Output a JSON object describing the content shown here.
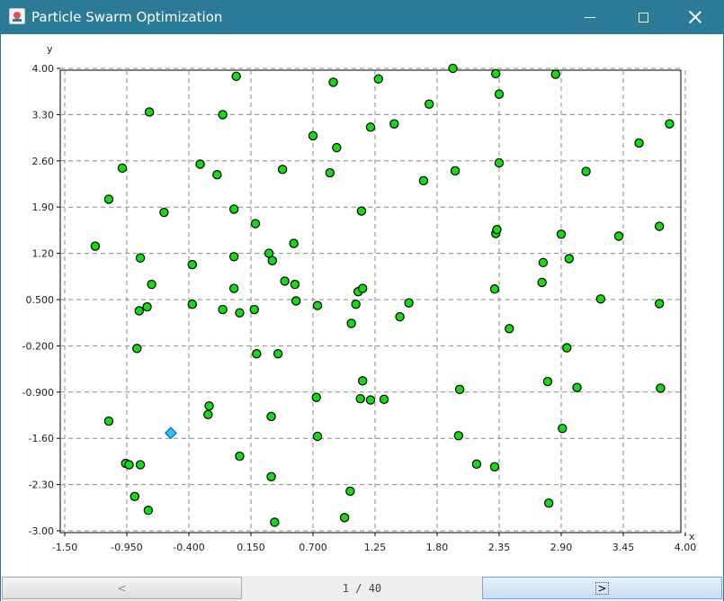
{
  "window": {
    "title": "Particle Swarm Optimization",
    "buttons": [
      "minimize",
      "maximize",
      "close"
    ],
    "icons": {
      "app": "java-icon",
      "minimize": "minimize-icon",
      "maximize": "maximize-icon",
      "close": "close-icon"
    },
    "titlebar_color": "#2b7a98"
  },
  "navigation": {
    "prev_label": "<",
    "next_label": ">",
    "page_text": "1 / 40"
  },
  "chart_data": {
    "type": "scatter",
    "xlabel": "x",
    "ylabel": "y",
    "xlim": [
      -1.5,
      4.0
    ],
    "ylim": [
      -3.0,
      4.0
    ],
    "xticks": [
      "-1.50",
      "-0.950",
      "-0.400",
      "0.150",
      "0.700",
      "1.25",
      "1.80",
      "2.35",
      "2.90",
      "3.45",
      "4.00"
    ],
    "yticks": [
      "-3.00",
      "-2.30",
      "-1.60",
      "-0.900",
      "-0.200",
      "0.500",
      "1.20",
      "1.90",
      "2.60",
      "3.30",
      "4.00"
    ],
    "xtick_values": [
      -1.5,
      -0.95,
      -0.4,
      0.15,
      0.7,
      1.25,
      1.8,
      2.35,
      2.9,
      3.45,
      4.0
    ],
    "ytick_values": [
      -3.0,
      -2.3,
      -1.6,
      -0.9,
      -0.2,
      0.5,
      1.2,
      1.9,
      2.6,
      3.3,
      4.0
    ],
    "grid": true,
    "series": [
      {
        "marker": "circle",
        "color": "#11dd11",
        "points": [
          [
            -1.23,
            1.31
          ],
          [
            -1.11,
            2.02
          ],
          [
            -0.99,
            2.49
          ],
          [
            -0.75,
            3.34
          ],
          [
            -0.62,
            1.82
          ],
          [
            -0.83,
            1.13
          ],
          [
            -0.73,
            0.73
          ],
          [
            -0.77,
            0.39
          ],
          [
            -0.84,
            0.33
          ],
          [
            -0.86,
            -0.24
          ],
          [
            -1.11,
            -1.34
          ],
          [
            -0.96,
            -1.98
          ],
          [
            -0.93,
            -2.0
          ],
          [
            -0.83,
            -2.0
          ],
          [
            -0.88,
            -2.48
          ],
          [
            -0.76,
            -2.69
          ],
          [
            -0.3,
            2.55
          ],
          [
            -0.15,
            2.39
          ],
          [
            -0.1,
            3.3
          ],
          [
            0.02,
            3.88
          ],
          [
            0.0,
            1.87
          ],
          [
            -0.37,
            1.03
          ],
          [
            -0.37,
            0.43
          ],
          [
            -0.1,
            0.35
          ],
          [
            0.0,
            0.67
          ],
          [
            0.0,
            1.15
          ],
          [
            0.05,
            0.3
          ],
          [
            0.19,
            1.65
          ],
          [
            0.18,
            0.35
          ],
          [
            0.2,
            -0.32
          ],
          [
            -0.22,
            -1.11
          ],
          [
            -0.23,
            -1.24
          ],
          [
            0.05,
            -1.87
          ],
          [
            0.31,
            1.2
          ],
          [
            0.34,
            1.09
          ],
          [
            0.43,
            2.47
          ],
          [
            0.53,
            1.35
          ],
          [
            0.54,
            0.73
          ],
          [
            0.45,
            0.78
          ],
          [
            0.55,
            0.48
          ],
          [
            0.7,
            2.98
          ],
          [
            0.85,
            2.42
          ],
          [
            0.88,
            3.79
          ],
          [
            0.91,
            2.8
          ],
          [
            0.74,
            0.41
          ],
          [
            0.33,
            -1.27
          ],
          [
            0.39,
            -0.32
          ],
          [
            0.33,
            -2.18
          ],
          [
            0.36,
            -2.87
          ],
          [
            0.73,
            -0.98
          ],
          [
            0.74,
            -1.57
          ],
          [
            0.98,
            -2.8
          ],
          [
            1.03,
            -2.4
          ],
          [
            1.1,
            0.62
          ],
          [
            1.08,
            0.43
          ],
          [
            1.04,
            0.14
          ],
          [
            1.14,
            0.67
          ],
          [
            1.13,
            1.84
          ],
          [
            1.21,
            3.11
          ],
          [
            1.28,
            3.84
          ],
          [
            1.42,
            3.16
          ],
          [
            1.55,
            0.45
          ],
          [
            1.68,
            2.3
          ],
          [
            1.73,
            3.46
          ],
          [
            1.94,
            4.0
          ],
          [
            1.47,
            0.24
          ],
          [
            1.14,
            -0.73
          ],
          [
            1.12,
            -1.0
          ],
          [
            1.21,
            -1.02
          ],
          [
            1.33,
            -1.01
          ],
          [
            1.96,
            2.45
          ],
          [
            2.0,
            -0.86
          ],
          [
            1.99,
            -1.56
          ],
          [
            2.15,
            -1.99
          ],
          [
            2.32,
            3.92
          ],
          [
            2.35,
            3.61
          ],
          [
            2.35,
            2.57
          ],
          [
            2.32,
            1.5
          ],
          [
            2.33,
            1.56
          ],
          [
            2.31,
            0.66
          ],
          [
            2.44,
            0.06
          ],
          [
            2.31,
            -2.03
          ],
          [
            2.85,
            3.91
          ],
          [
            2.9,
            1.49
          ],
          [
            2.97,
            1.12
          ],
          [
            2.73,
            0.76
          ],
          [
            2.74,
            1.06
          ],
          [
            2.78,
            -0.74
          ],
          [
            2.91,
            -1.45
          ],
          [
            2.95,
            -0.23
          ],
          [
            3.04,
            -0.83
          ],
          [
            3.12,
            2.44
          ],
          [
            3.25,
            0.51
          ],
          [
            3.41,
            1.46
          ],
          [
            3.59,
            2.87
          ],
          [
            3.77,
            1.61
          ],
          [
            3.77,
            0.44
          ],
          [
            3.78,
            -0.84
          ],
          [
            3.86,
            3.16
          ],
          [
            2.79,
            -2.58
          ]
        ]
      },
      {
        "marker": "diamond",
        "color": "#22c8ff",
        "points": [
          [
            -0.56,
            -1.52
          ]
        ]
      }
    ]
  }
}
